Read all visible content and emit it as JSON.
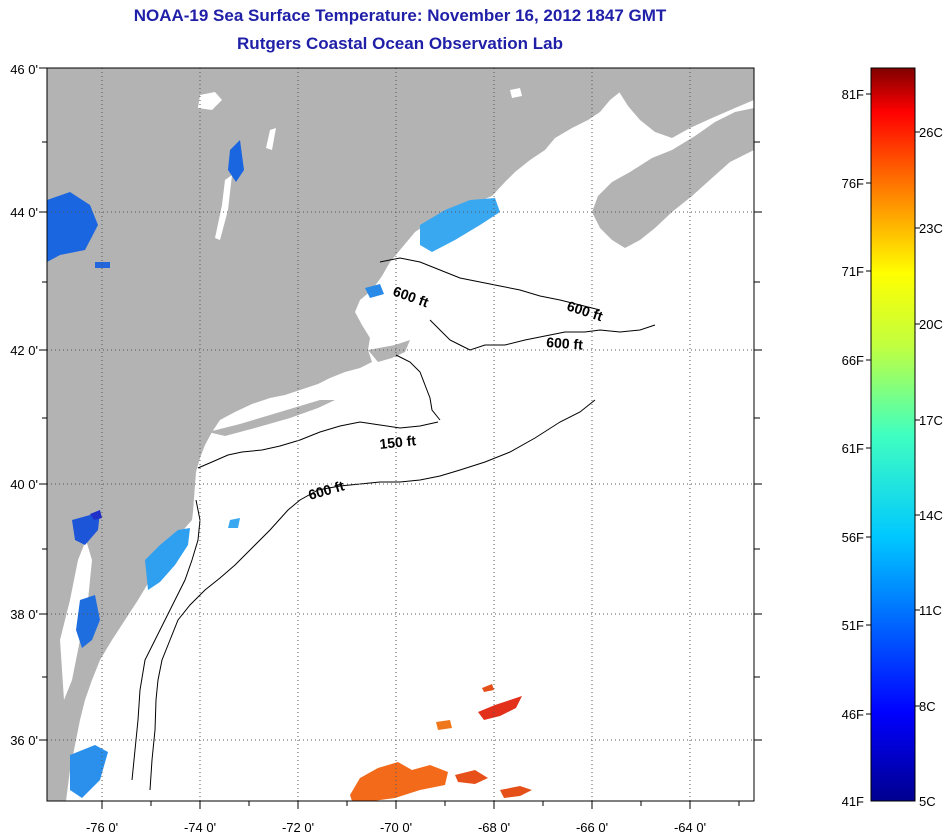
{
  "header": {
    "title": "NOAA-19 Sea Surface Temperature:  November 16, 2012 1847 GMT",
    "subtitle": "Rutgers Coastal Ocean Observation Lab"
  },
  "map": {
    "lon_labels": [
      "-76 0'",
      "-74 0'",
      "-72 0'",
      "-70 0'",
      "-68 0'",
      "-66 0'",
      "-64 0'"
    ],
    "lat_labels": [
      "46 0'",
      "44 0'",
      "42 0'",
      "40 0'",
      "38 0'",
      "36 0'"
    ],
    "contour_labels": [
      "600 ft",
      "600 ft",
      "600 ft",
      "150 ft",
      "600 ft"
    ],
    "colors": {
      "land": "#b3b3b3",
      "water": "#ffffff",
      "grid": "#555555",
      "contour": "#000000"
    }
  },
  "colorbar": {
    "fahrenheit_labels": [
      "81F",
      "76F",
      "71F",
      "66F",
      "61F",
      "56F",
      "51F",
      "46F",
      "41F"
    ],
    "celsius_labels": [
      "26C",
      "23C",
      "20C",
      "17C",
      "14C",
      "11C",
      "8C",
      "5C"
    ],
    "scale": "jet"
  }
}
